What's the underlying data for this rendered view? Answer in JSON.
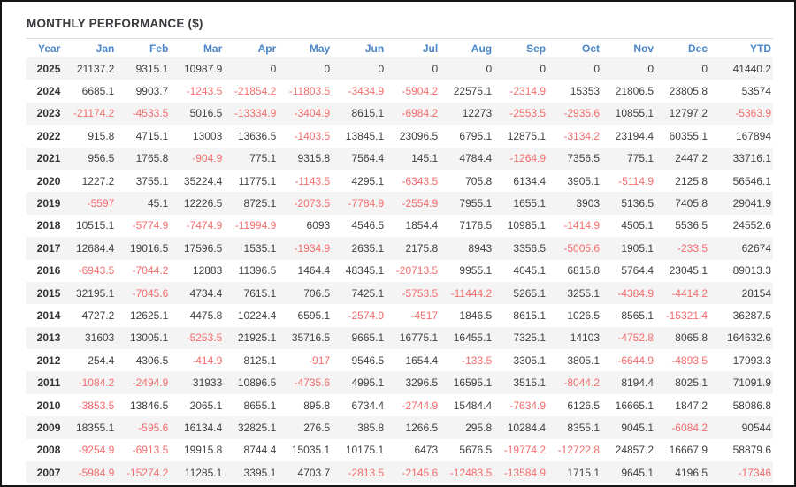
{
  "title": "MONTHLY PERFORMANCE ($)",
  "columns": [
    "Year",
    "Jan",
    "Feb",
    "Mar",
    "Apr",
    "May",
    "Jun",
    "Jul",
    "Aug",
    "Sep",
    "Oct",
    "Nov",
    "Dec",
    "YTD"
  ],
  "rows": [
    {
      "year": "2025",
      "values": [
        "21137.2",
        "9315.1",
        "10987.9",
        "0",
        "0",
        "0",
        "0",
        "0",
        "0",
        "0",
        "0",
        "0",
        "41440.2"
      ]
    },
    {
      "year": "2024",
      "values": [
        "6685.1",
        "9903.7",
        "-1243.5",
        "-21854.2",
        "-11803.5",
        "-3434.9",
        "-5904.2",
        "22575.1",
        "-2314.9",
        "15353",
        "21806.5",
        "23805.8",
        "53574"
      ]
    },
    {
      "year": "2023",
      "values": [
        "-21174.2",
        "-4533.5",
        "5016.5",
        "-13334.9",
        "-3404.9",
        "8615.1",
        "-6984.2",
        "12273",
        "-2553.5",
        "-2935.6",
        "10855.1",
        "12797.2",
        "-5363.9"
      ]
    },
    {
      "year": "2022",
      "values": [
        "915.8",
        "4715.1",
        "13003",
        "13636.5",
        "-1403.5",
        "13845.1",
        "23096.5",
        "6795.1",
        "12875.1",
        "-3134.2",
        "23194.4",
        "60355.1",
        "167894"
      ]
    },
    {
      "year": "2021",
      "values": [
        "956.5",
        "1765.8",
        "-904.9",
        "775.1",
        "9315.8",
        "7564.4",
        "145.1",
        "4784.4",
        "-1264.9",
        "7356.5",
        "775.1",
        "2447.2",
        "33716.1"
      ]
    },
    {
      "year": "2020",
      "values": [
        "1227.2",
        "3755.1",
        "35224.4",
        "11775.1",
        "-1143.5",
        "4295.1",
        "-6343.5",
        "705.8",
        "6134.4",
        "3905.1",
        "-5114.9",
        "2125.8",
        "56546.1"
      ]
    },
    {
      "year": "2019",
      "values": [
        "-5597",
        "45.1",
        "12226.5",
        "8725.1",
        "-2073.5",
        "-7784.9",
        "-2554.9",
        "7955.1",
        "1655.1",
        "3903",
        "5136.5",
        "7405.8",
        "29041.9"
      ]
    },
    {
      "year": "2018",
      "values": [
        "10515.1",
        "-5774.9",
        "-7474.9",
        "-11994.9",
        "6093",
        "4546.5",
        "1854.4",
        "7176.5",
        "10985.1",
        "-1414.9",
        "4505.1",
        "5536.5",
        "24552.6"
      ]
    },
    {
      "year": "2017",
      "values": [
        "12684.4",
        "19016.5",
        "17596.5",
        "1535.1",
        "-1934.9",
        "2635.1",
        "2175.8",
        "8943",
        "3356.5",
        "-5005.6",
        "1905.1",
        "-233.5",
        "62674"
      ]
    },
    {
      "year": "2016",
      "values": [
        "-6943.5",
        "-7044.2",
        "12883",
        "11396.5",
        "1464.4",
        "48345.1",
        "-20713.5",
        "9955.1",
        "4045.1",
        "6815.8",
        "5764.4",
        "23045.1",
        "89013.3"
      ]
    },
    {
      "year": "2015",
      "values": [
        "32195.1",
        "-7045.6",
        "4734.4",
        "7615.1",
        "706.5",
        "7425.1",
        "-5753.5",
        "-11444.2",
        "5265.1",
        "3255.1",
        "-4384.9",
        "-4414.2",
        "28154"
      ]
    },
    {
      "year": "2014",
      "values": [
        "4727.2",
        "12625.1",
        "4475.8",
        "10224.4",
        "6595.1",
        "-2574.9",
        "-4517",
        "1846.5",
        "8615.1",
        "1026.5",
        "8565.1",
        "-15321.4",
        "36287.5"
      ]
    },
    {
      "year": "2013",
      "values": [
        "31603",
        "13005.1",
        "-5253.5",
        "21925.1",
        "35716.5",
        "9665.1",
        "16775.1",
        "16455.1",
        "7325.1",
        "14103",
        "-4752.8",
        "8065.8",
        "164632.6"
      ]
    },
    {
      "year": "2012",
      "values": [
        "254.4",
        "4306.5",
        "-414.9",
        "8125.1",
        "-917",
        "9546.5",
        "1654.4",
        "-133.5",
        "3305.1",
        "3805.1",
        "-6644.9",
        "-4893.5",
        "17993.3"
      ]
    },
    {
      "year": "2011",
      "values": [
        "-1084.2",
        "-2494.9",
        "31933",
        "10896.5",
        "-4735.6",
        "4995.1",
        "3296.5",
        "16595.1",
        "3515.1",
        "-8044.2",
        "8194.4",
        "8025.1",
        "71091.9"
      ]
    },
    {
      "year": "2010",
      "values": [
        "-3853.5",
        "13846.5",
        "2065.1",
        "8655.1",
        "895.8",
        "6734.4",
        "-2744.9",
        "15484.4",
        "-7634.9",
        "6126.5",
        "16665.1",
        "1847.2",
        "58086.8"
      ]
    },
    {
      "year": "2009",
      "values": [
        "18355.1",
        "-595.6",
        "16134.4",
        "32825.1",
        "276.5",
        "385.8",
        "1266.5",
        "295.8",
        "10284.4",
        "8355.1",
        "9045.1",
        "-6084.2",
        "90544"
      ]
    },
    {
      "year": "2008",
      "values": [
        "-9254.9",
        "-6913.5",
        "19915.8",
        "8744.4",
        "15035.1",
        "10175.1",
        "6473",
        "5676.5",
        "-19774.2",
        "-12722.8",
        "24857.2",
        "16667.9",
        "58879.6"
      ]
    },
    {
      "year": "2007",
      "values": [
        "-5984.9",
        "-15274.2",
        "11285.1",
        "3395.1",
        "4703.7",
        "-2813.5",
        "-2145.6",
        "-12483.5",
        "-13584.9",
        "1715.1",
        "9645.1",
        "4196.5",
        "-17346"
      ]
    }
  ],
  "colors": {
    "header_blue": "#4a86c7",
    "negative_red": "#f26d6d",
    "value_text": "#3f3f3f",
    "stripe": "#f4f4f4",
    "frame_border": "#161616"
  }
}
